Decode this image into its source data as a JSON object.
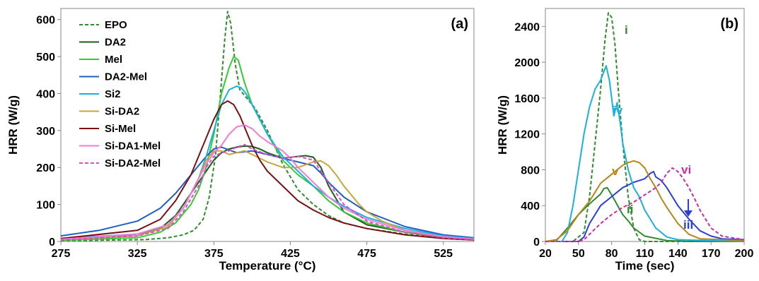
{
  "chart_data": [
    {
      "type": "line",
      "panel_label": "(a)",
      "xlabel": "Temperature (°C)",
      "ylabel": "HRR (W/g)",
      "xlim": [
        275,
        545
      ],
      "ylim": [
        0,
        630
      ],
      "xticks": [
        275,
        325,
        375,
        425,
        475,
        525
      ],
      "yticks": [
        0,
        100,
        200,
        300,
        400,
        500,
        600
      ],
      "legend_position": "top-left",
      "series": [
        {
          "name": "EPO",
          "color": "#2e8b2e",
          "dash": true,
          "x": [
            275,
            330,
            345,
            355,
            362,
            368,
            372,
            376,
            379,
            382,
            384,
            386,
            389,
            392,
            397,
            402,
            410,
            420,
            430,
            440,
            450,
            460,
            475,
            500,
            525,
            545
          ],
          "y": [
            2,
            5,
            10,
            18,
            30,
            60,
            120,
            230,
            380,
            540,
            622,
            590,
            480,
            410,
            385,
            360,
            300,
            210,
            140,
            100,
            70,
            50,
            35,
            20,
            10,
            5
          ]
        },
        {
          "name": "DA2",
          "color": "#1b5e1b",
          "x": [
            275,
            300,
            325,
            340,
            350,
            360,
            370,
            375,
            380,
            385,
            390,
            395,
            400,
            405,
            410,
            420,
            430,
            435,
            440,
            445,
            450,
            460,
            475,
            500,
            525,
            545
          ],
          "y": [
            5,
            10,
            20,
            35,
            70,
            130,
            190,
            220,
            240,
            250,
            255,
            258,
            257,
            250,
            240,
            225,
            230,
            232,
            228,
            200,
            150,
            80,
            45,
            25,
            12,
            7
          ]
        },
        {
          "name": "Mel",
          "color": "#33cc33",
          "x": [
            275,
            325,
            340,
            350,
            360,
            365,
            370,
            375,
            380,
            385,
            388,
            391,
            395,
            400,
            405,
            410,
            420,
            430,
            440,
            450,
            460,
            475,
            500,
            525,
            545
          ],
          "y": [
            3,
            10,
            25,
            50,
            100,
            140,
            200,
            290,
            400,
            470,
            500,
            490,
            430,
            370,
            330,
            290,
            220,
            180,
            150,
            110,
            80,
            50,
            25,
            12,
            6
          ]
        },
        {
          "name": "DA2-Mel",
          "color": "#1f5fc4",
          "x": [
            275,
            300,
            325,
            340,
            350,
            360,
            370,
            375,
            380,
            390,
            400,
            410,
            420,
            425,
            430,
            440,
            445,
            450,
            460,
            475,
            500,
            525,
            545
          ],
          "y": [
            15,
            30,
            55,
            90,
            130,
            180,
            230,
            250,
            255,
            240,
            245,
            235,
            225,
            220,
            215,
            205,
            185,
            160,
            120,
            80,
            40,
            18,
            10
          ]
        },
        {
          "name": "Si2",
          "color": "#1ab0e0",
          "x": [
            275,
            325,
            345,
            355,
            365,
            370,
            375,
            380,
            385,
            390,
            393,
            396,
            400,
            405,
            410,
            420,
            430,
            440,
            450,
            460,
            475,
            500,
            525,
            545
          ],
          "y": [
            8,
            20,
            45,
            90,
            170,
            230,
            300,
            370,
            410,
            420,
            415,
            400,
            370,
            330,
            290,
            230,
            190,
            150,
            120,
            95,
            65,
            35,
            15,
            8
          ]
        },
        {
          "name": "Si-DA2",
          "color": "#c9a53c",
          "x": [
            275,
            325,
            345,
            355,
            365,
            370,
            375,
            380,
            385,
            390,
            395,
            400,
            410,
            420,
            430,
            440,
            445,
            450,
            455,
            460,
            470,
            475,
            485,
            500,
            525,
            545
          ],
          "y": [
            5,
            15,
            40,
            90,
            170,
            220,
            245,
            245,
            235,
            240,
            245,
            235,
            215,
            200,
            200,
            215,
            218,
            205,
            180,
            150,
            100,
            80,
            55,
            30,
            12,
            6
          ]
        },
        {
          "name": "Si-Mel",
          "color": "#7b1010",
          "x": [
            275,
            325,
            340,
            350,
            360,
            365,
            370,
            375,
            380,
            384,
            388,
            392,
            396,
            400,
            405,
            410,
            420,
            430,
            440,
            450,
            460,
            475,
            500,
            525,
            545
          ],
          "y": [
            8,
            30,
            60,
            110,
            180,
            230,
            280,
            330,
            370,
            380,
            370,
            340,
            300,
            260,
            220,
            190,
            150,
            110,
            85,
            65,
            50,
            35,
            18,
            8,
            4
          ]
        },
        {
          "name": "Si-DA1-Mel",
          "color": "#f07bd6",
          "x": [
            275,
            325,
            345,
            355,
            365,
            370,
            375,
            380,
            385,
            390,
            395,
            400,
            405,
            410,
            420,
            425,
            430,
            440,
            450,
            460,
            475,
            500,
            525,
            545
          ],
          "y": [
            6,
            20,
            45,
            90,
            170,
            210,
            240,
            260,
            290,
            310,
            315,
            305,
            285,
            270,
            245,
            225,
            200,
            160,
            120,
            90,
            60,
            30,
            13,
            6
          ]
        },
        {
          "name": "Si-DA2-Mel",
          "color": "#e04ad0",
          "dash": true,
          "x": [
            275,
            325,
            345,
            355,
            365,
            370,
            375,
            380,
            385,
            390,
            395,
            400,
            410,
            420,
            430,
            440,
            450,
            460,
            475,
            500,
            525,
            545
          ],
          "y": [
            4,
            15,
            35,
            80,
            150,
            200,
            230,
            240,
            245,
            255,
            262,
            250,
            235,
            225,
            230,
            220,
            160,
            100,
            55,
            25,
            10,
            5
          ]
        }
      ]
    },
    {
      "type": "line",
      "panel_label": "(b)",
      "xlabel": "Time (sec)",
      "ylabel": "HRR (W/g)",
      "xlim": [
        20,
        200
      ],
      "ylim": [
        0,
        2600
      ],
      "xticks": [
        20,
        50,
        80,
        110,
        140,
        170,
        200
      ],
      "yticks": [
        0,
        400,
        800,
        1200,
        1600,
        2000,
        2400
      ],
      "series": [
        {
          "label": "i",
          "color": "#2e8b2e",
          "dash": true,
          "x": [
            20,
            45,
            55,
            60,
            65,
            70,
            74,
            77,
            80,
            83,
            86,
            90,
            95,
            100,
            105,
            110,
            130,
            200
          ],
          "y": [
            0,
            0,
            100,
            500,
            1100,
            1700,
            2250,
            2550,
            2500,
            2200,
            1700,
            1100,
            500,
            150,
            20,
            0,
            0,
            0
          ]
        },
        {
          "label": "ii",
          "color": "#2e8b2e",
          "x": [
            20,
            30,
            40,
            50,
            60,
            70,
            73,
            76,
            80,
            85,
            90,
            95,
            100,
            110,
            130,
            150,
            200
          ],
          "y": [
            0,
            10,
            150,
            300,
            420,
            530,
            590,
            600,
            520,
            410,
            300,
            230,
            150,
            60,
            10,
            0,
            0
          ]
        },
        {
          "label": "iii",
          "color": "#2b3fd8",
          "x": [
            20,
            50,
            55,
            60,
            70,
            80,
            90,
            100,
            110,
            115,
            118,
            120,
            125,
            130,
            135,
            140,
            150,
            160,
            170,
            180,
            200
          ],
          "y": [
            0,
            0,
            50,
            200,
            400,
            500,
            600,
            660,
            700,
            760,
            780,
            720,
            680,
            600,
            500,
            400,
            250,
            120,
            60,
            30,
            20
          ]
        },
        {
          "label": "iv",
          "color": "#1ab0e0",
          "x": [
            20,
            35,
            40,
            45,
            50,
            55,
            60,
            65,
            70,
            75,
            78,
            80,
            82,
            85,
            88,
            90,
            95,
            100,
            105,
            110,
            120,
            130,
            140,
            200
          ],
          "y": [
            0,
            0,
            100,
            400,
            800,
            1200,
            1500,
            1700,
            1800,
            1960,
            1800,
            1600,
            1400,
            1550,
            1300,
            1100,
            800,
            600,
            500,
            350,
            150,
            50,
            20,
            0
          ]
        },
        {
          "label": "v",
          "color": "#b8861a",
          "x": [
            20,
            30,
            40,
            50,
            60,
            65,
            70,
            75,
            80,
            85,
            90,
            95,
            100,
            105,
            110,
            115,
            120,
            125,
            130,
            140,
            150,
            160,
            200
          ],
          "y": [
            0,
            20,
            120,
            300,
            450,
            550,
            650,
            700,
            750,
            800,
            850,
            880,
            900,
            880,
            820,
            700,
            600,
            480,
            380,
            200,
            80,
            30,
            10
          ]
        },
        {
          "label": "vi",
          "color": "#d02aa8",
          "dash": true,
          "x": [
            20,
            50,
            55,
            60,
            70,
            80,
            90,
            100,
            110,
            120,
            125,
            130,
            135,
            140,
            145,
            150,
            155,
            160,
            170,
            180,
            200
          ],
          "y": [
            0,
            0,
            20,
            80,
            200,
            300,
            380,
            440,
            520,
            600,
            660,
            760,
            820,
            780,
            700,
            600,
            480,
            350,
            150,
            60,
            20
          ]
        }
      ],
      "annotations": [
        "i",
        "ii",
        "iii",
        "iv",
        "v",
        "vi"
      ]
    }
  ]
}
